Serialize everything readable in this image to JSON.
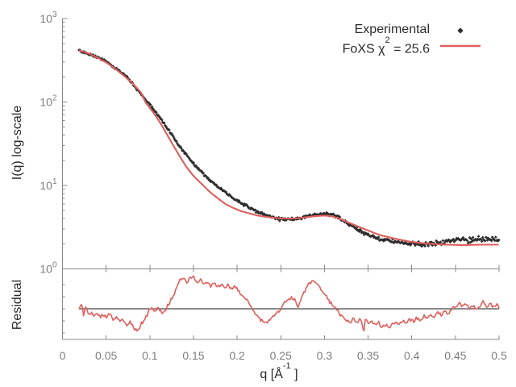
{
  "figure": {
    "background": "#ffffff",
    "main_ylabel": "I(q) log-scale",
    "residual_ylabel": "Residual",
    "xlabel_prefix": "q [Å",
    "xlabel_sup": "-1",
    "xlabel_suffix": " ]",
    "legend": {
      "experimental_label": "Experimental",
      "foxs_label_prefix": "FoXS χ",
      "foxs_label_sup": "2",
      "foxs_label_suffix": " = 25.6"
    }
  },
  "chart_data": {
    "type": "line",
    "title": "",
    "xlabel": "q [Å^-1]",
    "xlim": [
      0,
      0.5
    ],
    "x_ticks": [
      {
        "label": "0",
        "value": 0.0
      },
      {
        "label": "0.05",
        "value": 0.05
      },
      {
        "label": "0.1",
        "value": 0.1
      },
      {
        "label": "0.15",
        "value": 0.15
      },
      {
        "label": "0.2",
        "value": 0.2
      },
      {
        "label": "0.25",
        "value": 0.25
      },
      {
        "label": "0.3",
        "value": 0.3
      },
      {
        "label": "0.35",
        "value": 0.35
      },
      {
        "label": "0.4",
        "value": 0.4
      },
      {
        "label": "0.45",
        "value": 0.45
      },
      {
        "label": "0.5",
        "value": 0.5
      }
    ],
    "colors": {
      "experimental": "#2e2e2e",
      "fit": "#df5f5c",
      "axis": "#888888",
      "tick_label": "#7d7d7d",
      "baseline": "#1a1a1a"
    },
    "panels": [
      {
        "name": "main",
        "ylabel": "I(q) log-scale",
        "yscale": "log",
        "ylim": [
          1,
          1000
        ],
        "y_ticks": [
          {
            "base": "10",
            "exp": "3",
            "value": 1000
          },
          {
            "base": "10",
            "exp": "2",
            "value": 100
          },
          {
            "base": "10",
            "exp": "1",
            "value": 10
          },
          {
            "base": "10",
            "exp": "0",
            "value": 1
          }
        ],
        "series": [
          {
            "name": "Experimental",
            "style": "points",
            "marker": "diamond",
            "points_qI": [
              [
                0.019,
                412
              ],
              [
                0.025,
                395
              ],
              [
                0.03,
                376
              ],
              [
                0.039,
                346
              ],
              [
                0.048,
                316
              ],
              [
                0.058,
                265
              ],
              [
                0.067,
                230
              ],
              [
                0.076,
                188
              ],
              [
                0.085,
                144
              ],
              [
                0.095,
                108
              ],
              [
                0.104,
                82
              ],
              [
                0.113,
                62
              ],
              [
                0.122,
                45.5
              ],
              [
                0.132,
                31.5
              ],
              [
                0.141,
                24
              ],
              [
                0.15,
                18.2
              ],
              [
                0.16,
                14.2
              ],
              [
                0.169,
                11.6
              ],
              [
                0.178,
                9.6
              ],
              [
                0.187,
                8.3
              ],
              [
                0.196,
                7.0
              ],
              [
                0.205,
                6.1
              ],
              [
                0.215,
                5.4
              ],
              [
                0.224,
                4.8
              ],
              [
                0.233,
                4.4
              ],
              [
                0.242,
                4.1
              ],
              [
                0.252,
                3.95
              ],
              [
                0.261,
                3.9
              ],
              [
                0.27,
                4.0
              ],
              [
                0.279,
                4.25
              ],
              [
                0.289,
                4.45
              ],
              [
                0.298,
                4.55
              ],
              [
                0.307,
                4.5
              ],
              [
                0.316,
                4.2
              ],
              [
                0.326,
                3.55
              ],
              [
                0.335,
                3.1
              ],
              [
                0.344,
                2.75
              ],
              [
                0.353,
                2.5
              ],
              [
                0.363,
                2.3
              ],
              [
                0.372,
                2.2
              ],
              [
                0.381,
                2.1
              ],
              [
                0.39,
                2.05
              ],
              [
                0.4,
                2.0
              ],
              [
                0.412,
                1.97
              ],
              [
                0.425,
                2.02
              ],
              [
                0.437,
                2.1
              ],
              [
                0.449,
                2.2
              ],
              [
                0.458,
                2.3
              ],
              [
                0.465,
                2.2
              ],
              [
                0.472,
                2.25
              ],
              [
                0.481,
                2.3
              ],
              [
                0.49,
                2.2
              ],
              [
                0.5,
                2.2
              ]
            ]
          },
          {
            "name": "FoXS chi2 = 25.6",
            "style": "line",
            "points_qI": [
              [
                0.019,
                415
              ],
              [
                0.03,
                382
              ],
              [
                0.04,
                340
              ],
              [
                0.05,
                298
              ],
              [
                0.06,
                252
              ],
              [
                0.07,
                208
              ],
              [
                0.08,
                168
              ],
              [
                0.09,
                130
              ],
              [
                0.095,
                99
              ],
              [
                0.104,
                75
              ],
              [
                0.113,
                54
              ],
              [
                0.122,
                37
              ],
              [
                0.132,
                24.5
              ],
              [
                0.141,
                17.2
              ],
              [
                0.15,
                13
              ],
              [
                0.16,
                10.3
              ],
              [
                0.169,
                8.3
              ],
              [
                0.178,
                7.0
              ],
              [
                0.187,
                5.95
              ],
              [
                0.196,
                5.35
              ],
              [
                0.205,
                4.9
              ],
              [
                0.215,
                4.6
              ],
              [
                0.224,
                4.35
              ],
              [
                0.233,
                4.2
              ],
              [
                0.242,
                4.1
              ],
              [
                0.252,
                4.02
              ],
              [
                0.261,
                4.0
              ],
              [
                0.27,
                4.05
              ],
              [
                0.279,
                4.15
              ],
              [
                0.289,
                4.28
              ],
              [
                0.298,
                4.35
              ],
              [
                0.307,
                4.3
              ],
              [
                0.316,
                4.05
              ],
              [
                0.326,
                3.65
              ],
              [
                0.344,
                3.05
              ],
              [
                0.363,
                2.55
              ],
              [
                0.381,
                2.3
              ],
              [
                0.4,
                2.1
              ],
              [
                0.42,
                2.0
              ],
              [
                0.44,
                1.95
              ],
              [
                0.46,
                1.93
              ],
              [
                0.48,
                1.95
              ],
              [
                0.5,
                1.95
              ]
            ]
          }
        ]
      },
      {
        "name": "residual",
        "ylabel": "Residual",
        "baseline_value": 1,
        "series": [
          {
            "name": "residual-trace",
            "style": "line",
            "points_qv": [
              [
                0.019,
                0.0
              ],
              [
                0.022,
                0.11
              ],
              [
                0.024,
                -0.16
              ],
              [
                0.027,
                0.07
              ],
              [
                0.03,
                -0.2
              ],
              [
                0.033,
                -0.07
              ],
              [
                0.036,
                -0.2
              ],
              [
                0.04,
                -0.11
              ],
              [
                0.043,
                -0.25
              ],
              [
                0.046,
                -0.16
              ],
              [
                0.05,
                -0.23
              ],
              [
                0.054,
                -0.14
              ],
              [
                0.058,
                -0.32
              ],
              [
                0.062,
                -0.2
              ],
              [
                0.066,
                -0.39
              ],
              [
                0.07,
                -0.3
              ],
              [
                0.074,
                -0.45
              ],
              [
                0.078,
                -0.36
              ],
              [
                0.082,
                -0.55
              ],
              [
                0.086,
                -0.61
              ],
              [
                0.09,
                -0.43
              ],
              [
                0.094,
                -0.3
              ],
              [
                0.098,
                -0.11
              ],
              [
                0.102,
                0.05
              ],
              [
                0.106,
                -0.05
              ],
              [
                0.11,
                0.02
              ],
              [
                0.114,
                -0.14
              ],
              [
                0.118,
                -0.02
              ],
              [
                0.122,
                0.16
              ],
              [
                0.126,
                0.34
              ],
              [
                0.13,
                0.52
              ],
              [
                0.134,
                0.8
              ],
              [
                0.138,
                0.89
              ],
              [
                0.142,
                0.75
              ],
              [
                0.146,
                0.86
              ],
              [
                0.15,
                0.93
              ],
              [
                0.154,
                0.75
              ],
              [
                0.158,
                0.82
              ],
              [
                0.162,
                0.68
              ],
              [
                0.166,
                0.77
              ],
              [
                0.17,
                0.64
              ],
              [
                0.174,
                0.73
              ],
              [
                0.178,
                0.61
              ],
              [
                0.182,
                0.7
              ],
              [
                0.186,
                0.57
              ],
              [
                0.19,
                0.68
              ],
              [
                0.194,
                0.52
              ],
              [
                0.198,
                0.64
              ],
              [
                0.202,
                0.48
              ],
              [
                0.206,
                0.39
              ],
              [
                0.21,
                0.27
              ],
              [
                0.214,
                0.14
              ],
              [
                0.218,
                -0.02
              ],
              [
                0.222,
                -0.18
              ],
              [
                0.226,
                -0.3
              ],
              [
                0.23,
                -0.36
              ],
              [
                0.234,
                -0.41
              ],
              [
                0.238,
                -0.3
              ],
              [
                0.242,
                -0.2
              ],
              [
                0.246,
                -0.11
              ],
              [
                0.25,
                0.0
              ],
              [
                0.254,
                0.18
              ],
              [
                0.258,
                0.27
              ],
              [
                0.262,
                0.32
              ],
              [
                0.266,
                0.25
              ],
              [
                0.27,
                0.07
              ],
              [
                0.274,
                0.3
              ],
              [
                0.278,
                0.52
              ],
              [
                0.282,
                0.7
              ],
              [
                0.286,
                0.77
              ],
              [
                0.29,
                0.7
              ],
              [
                0.294,
                0.61
              ],
              [
                0.298,
                0.45
              ],
              [
                0.302,
                0.34
              ],
              [
                0.306,
                0.2
              ],
              [
                0.31,
                0.09
              ],
              [
                0.314,
                -0.02
              ],
              [
                0.318,
                -0.16
              ],
              [
                0.322,
                -0.25
              ],
              [
                0.326,
                -0.32
              ],
              [
                0.33,
                -0.36
              ],
              [
                0.334,
                -0.27
              ],
              [
                0.338,
                -0.39
              ],
              [
                0.342,
                -0.25
              ],
              [
                0.345,
                -0.75
              ],
              [
                0.347,
                -0.2
              ],
              [
                0.35,
                -0.43
              ],
              [
                0.354,
                -0.34
              ],
              [
                0.358,
                -0.48
              ],
              [
                0.362,
                -0.39
              ],
              [
                0.366,
                -0.52
              ],
              [
                0.37,
                -0.45
              ],
              [
                0.374,
                -0.55
              ],
              [
                0.378,
                -0.43
              ],
              [
                0.382,
                -0.34
              ],
              [
                0.386,
                -0.43
              ],
              [
                0.39,
                -0.32
              ],
              [
                0.394,
                -0.39
              ],
              [
                0.398,
                -0.3
              ],
              [
                0.402,
                -0.36
              ],
              [
                0.406,
                -0.25
              ],
              [
                0.41,
                -0.32
              ],
              [
                0.414,
                -0.2
              ],
              [
                0.418,
                -0.27
              ],
              [
                0.422,
                -0.16
              ],
              [
                0.426,
                -0.23
              ],
              [
                0.43,
                -0.11
              ],
              [
                0.434,
                -0.18
              ],
              [
                0.438,
                -0.07
              ],
              [
                0.442,
                -0.14
              ],
              [
                0.446,
                -0.02
              ],
              [
                0.45,
                0.07
              ],
              [
                0.454,
                0.16
              ],
              [
                0.458,
                0.05
              ],
              [
                0.462,
                0.14
              ],
              [
                0.466,
                0.02
              ],
              [
                0.47,
                0.11
              ],
              [
                0.474,
                0.0
              ],
              [
                0.478,
                0.09
              ],
              [
                0.482,
                0.2
              ],
              [
                0.486,
                0.07
              ],
              [
                0.49,
                0.16
              ],
              [
                0.494,
                0.02
              ],
              [
                0.498,
                0.11
              ],
              [
                0.5,
                0.05
              ]
            ]
          }
        ]
      }
    ]
  }
}
